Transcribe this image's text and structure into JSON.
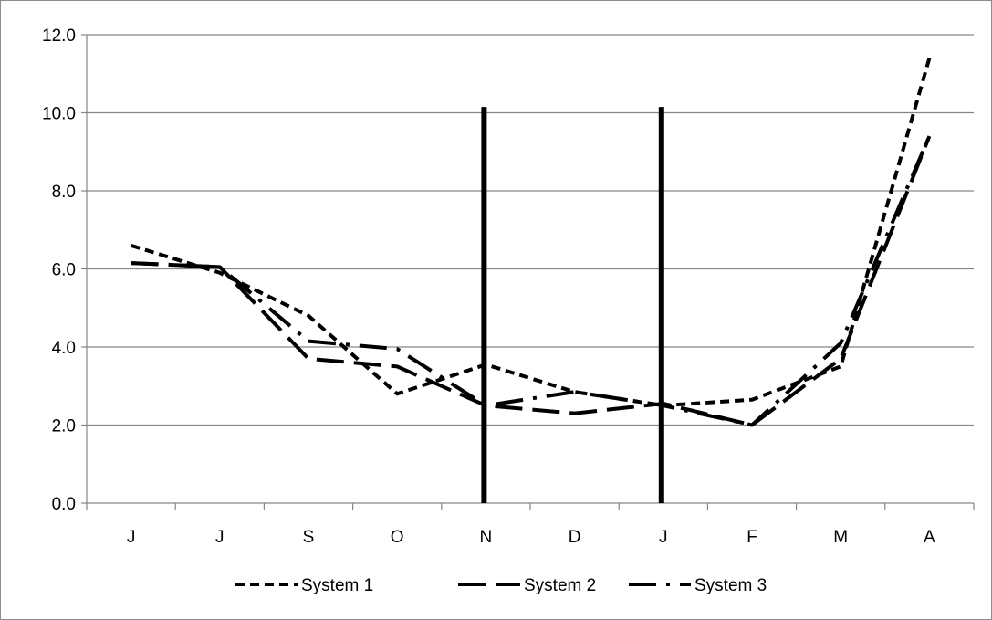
{
  "chart_data": {
    "type": "line",
    "title": "",
    "xlabel": "",
    "ylabel": "",
    "categories": [
      "J",
      "J",
      "S",
      "O",
      "N",
      "D",
      "J",
      "F",
      "M",
      "A"
    ],
    "ylim": [
      0,
      12
    ],
    "yticks": [
      "0.0",
      "2.0",
      "4.0",
      "6.0",
      "8.0",
      "10.0",
      "12.0"
    ],
    "grid": "horizontal",
    "legend_position": "bottom",
    "series": [
      {
        "name": "System 1",
        "values": [
          6.6,
          5.9,
          4.8,
          2.8,
          3.55,
          2.85,
          2.5,
          2.65,
          3.5,
          11.4
        ]
      },
      {
        "name": "System 2",
        "values": [
          6.15,
          6.05,
          3.7,
          3.5,
          2.5,
          2.3,
          2.55,
          2.0,
          3.7,
          9.4
        ]
      },
      {
        "name": "System 3",
        "values": [
          6.15,
          6.05,
          4.15,
          3.95,
          2.5,
          2.85,
          2.5,
          2.0,
          4.1,
          9.4
        ]
      }
    ],
    "vertical_markers": {
      "positions": [
        4,
        6
      ],
      "top_value": 10.15
    }
  },
  "colors": {
    "line": "#000000",
    "grid": "#868686",
    "axis": "#868686",
    "frame": "#8c8c8c"
  }
}
